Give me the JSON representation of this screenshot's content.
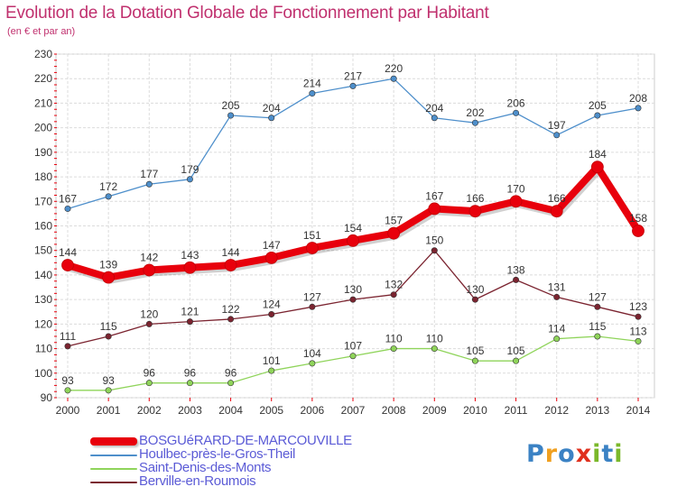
{
  "header": {
    "title": "Evolution de la Dotation Globale de Fonctionnement par Habitant",
    "subtitle": "(en € et par an)"
  },
  "logo": {
    "text": "Proxiti",
    "letters": [
      {
        "ch": "P",
        "color": "#3b82c4"
      },
      {
        "ch": "r",
        "color": "#f0a020"
      },
      {
        "ch": "o",
        "color": "#3b82c4"
      },
      {
        "ch": "x",
        "color": "#e0301e"
      },
      {
        "ch": "i",
        "color": "#7ab82a"
      },
      {
        "ch": "t",
        "color": "#3b82c4"
      },
      {
        "ch": "i",
        "color": "#7ab82a"
      }
    ]
  },
  "chart_data": {
    "type": "line",
    "title": "Evolution de la Dotation Globale de Fonctionnement par Habitant",
    "subtitle": "(en € et par an)",
    "x": [
      "2000",
      "2001",
      "2002",
      "2003",
      "2004",
      "2005",
      "2006",
      "2007",
      "2008",
      "2009",
      "2010",
      "2011",
      "2012",
      "2013",
      "2014"
    ],
    "ylim": [
      90,
      230
    ],
    "yticks": [
      90,
      100,
      110,
      120,
      130,
      140,
      150,
      160,
      170,
      180,
      190,
      200,
      210,
      220,
      230
    ],
    "grid": true,
    "legend_position": "bottom-left",
    "series": [
      {
        "name": "BOSGUéRARD-DE-MARCOUVILLE",
        "color": "#e8000c",
        "emphasis": true,
        "values": [
          144,
          139,
          142,
          143,
          144,
          147,
          151,
          154,
          157,
          167,
          166,
          170,
          166,
          184,
          158
        ]
      },
      {
        "name": "Houlbec-près-le-Gros-Theil",
        "color": "#4e8fcb",
        "emphasis": false,
        "values": [
          167,
          172,
          177,
          179,
          205,
          204,
          214,
          217,
          220,
          204,
          202,
          206,
          197,
          205,
          208
        ]
      },
      {
        "name": "Saint-Denis-des-Monts",
        "color": "#8fd45a",
        "emphasis": false,
        "values": [
          93,
          93,
          96,
          96,
          96,
          101,
          104,
          107,
          110,
          110,
          105,
          105,
          114,
          115,
          113
        ]
      },
      {
        "name": "Berville-en-Roumois",
        "color": "#7b2430",
        "emphasis": false,
        "values": [
          111,
          115,
          120,
          121,
          122,
          124,
          127,
          130,
          132,
          150,
          130,
          138,
          131,
          127,
          123
        ]
      }
    ]
  }
}
